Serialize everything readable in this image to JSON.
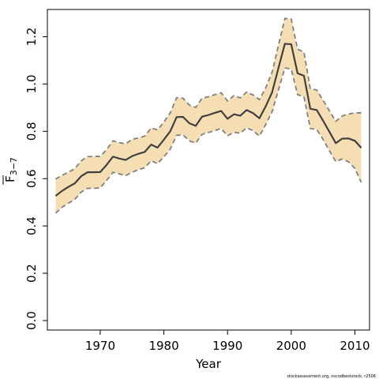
{
  "chart_data": {
    "type": "line",
    "xlabel": "Year",
    "ylabel_main": "F",
    "ylabel_sub": "3−7",
    "credit": "stockassessment.org, nscodbeststock, r2506",
    "xlim": [
      1961.7,
      2012.3
    ],
    "ylim": [
      -0.04,
      1.315
    ],
    "xticks": [
      1970,
      1980,
      1990,
      2000,
      2010
    ],
    "yticks": [
      0.0,
      0.2,
      0.4,
      0.6,
      0.8,
      1.0,
      1.2
    ],
    "ytick_labels": [
      "0.0",
      "0.2",
      "0.4",
      "0.6",
      "0.8",
      "1.0",
      "1.2"
    ],
    "colors": {
      "band": "#f5deb3",
      "bound_line": "#808080",
      "estimate_line": "#404040"
    },
    "series": [
      {
        "role": "estimate",
        "x": [
          1963,
          1964,
          1965,
          1966,
          1967,
          1968,
          1969,
          1970,
          1971,
          1972,
          1973,
          1974,
          1975,
          1976,
          1977,
          1978,
          1979,
          1980,
          1981,
          1982,
          1983,
          1984,
          1985,
          1986,
          1987,
          1988,
          1989,
          1990,
          1991,
          1992,
          1993,
          1994,
          1995,
          1996,
          1997,
          1998,
          1999,
          2000,
          2001,
          2002,
          2003,
          2004,
          2005,
          2006,
          2007,
          2008,
          2009,
          2010,
          2011
        ],
        "values": [
          0.527,
          0.548,
          0.565,
          0.58,
          0.61,
          0.627,
          0.627,
          0.628,
          0.658,
          0.693,
          0.685,
          0.679,
          0.695,
          0.705,
          0.713,
          0.744,
          0.731,
          0.765,
          0.8,
          0.86,
          0.861,
          0.834,
          0.823,
          0.862,
          0.869,
          0.878,
          0.886,
          0.853,
          0.872,
          0.866,
          0.89,
          0.877,
          0.855,
          0.906,
          0.965,
          1.068,
          1.17,
          1.168,
          1.045,
          1.035,
          0.895,
          0.89,
          0.845,
          0.798,
          0.75,
          0.769,
          0.77,
          0.76,
          0.73
        ]
      },
      {
        "role": "upper",
        "x": [
          1963,
          1964,
          1965,
          1966,
          1967,
          1968,
          1969,
          1970,
          1971,
          1972,
          1973,
          1974,
          1975,
          1976,
          1977,
          1978,
          1979,
          1980,
          1981,
          1982,
          1983,
          1984,
          1985,
          1986,
          1987,
          1988,
          1989,
          1990,
          1991,
          1992,
          1993,
          1994,
          1995,
          1996,
          1997,
          1998,
          1999,
          2000,
          2001,
          2002,
          2003,
          2004,
          2005,
          2006,
          2007,
          2008,
          2009,
          2010,
          2011
        ],
        "values": [
          0.598,
          0.614,
          0.627,
          0.642,
          0.675,
          0.693,
          0.694,
          0.694,
          0.722,
          0.76,
          0.752,
          0.747,
          0.766,
          0.772,
          0.78,
          0.814,
          0.806,
          0.839,
          0.878,
          0.942,
          0.94,
          0.911,
          0.901,
          0.94,
          0.946,
          0.955,
          0.963,
          0.928,
          0.951,
          0.941,
          0.966,
          0.954,
          0.934,
          0.984,
          1.05,
          1.164,
          1.277,
          1.275,
          1.147,
          1.135,
          0.98,
          0.975,
          0.931,
          0.887,
          0.842,
          0.865,
          0.873,
          0.878,
          0.878
        ]
      },
      {
        "role": "lower",
        "x": [
          1963,
          1964,
          1965,
          1966,
          1967,
          1968,
          1969,
          1970,
          1971,
          1972,
          1973,
          1974,
          1975,
          1976,
          1977,
          1978,
          1979,
          1980,
          1981,
          1982,
          1983,
          1984,
          1985,
          1986,
          1987,
          1988,
          1989,
          1990,
          1991,
          1992,
          1993,
          1994,
          1995,
          1996,
          1997,
          1998,
          1999,
          2000,
          2001,
          2002,
          2003,
          2004,
          2005,
          2006,
          2007,
          2008,
          2009,
          2010,
          2011
        ],
        "values": [
          0.454,
          0.479,
          0.496,
          0.512,
          0.543,
          0.559,
          0.559,
          0.561,
          0.592,
          0.627,
          0.62,
          0.613,
          0.627,
          0.638,
          0.646,
          0.676,
          0.663,
          0.692,
          0.725,
          0.783,
          0.785,
          0.76,
          0.75,
          0.787,
          0.795,
          0.803,
          0.812,
          0.781,
          0.796,
          0.792,
          0.815,
          0.803,
          0.78,
          0.829,
          0.883,
          0.975,
          1.068,
          1.063,
          0.955,
          0.946,
          0.812,
          0.808,
          0.766,
          0.718,
          0.672,
          0.683,
          0.671,
          0.643,
          0.584
        ]
      }
    ]
  }
}
